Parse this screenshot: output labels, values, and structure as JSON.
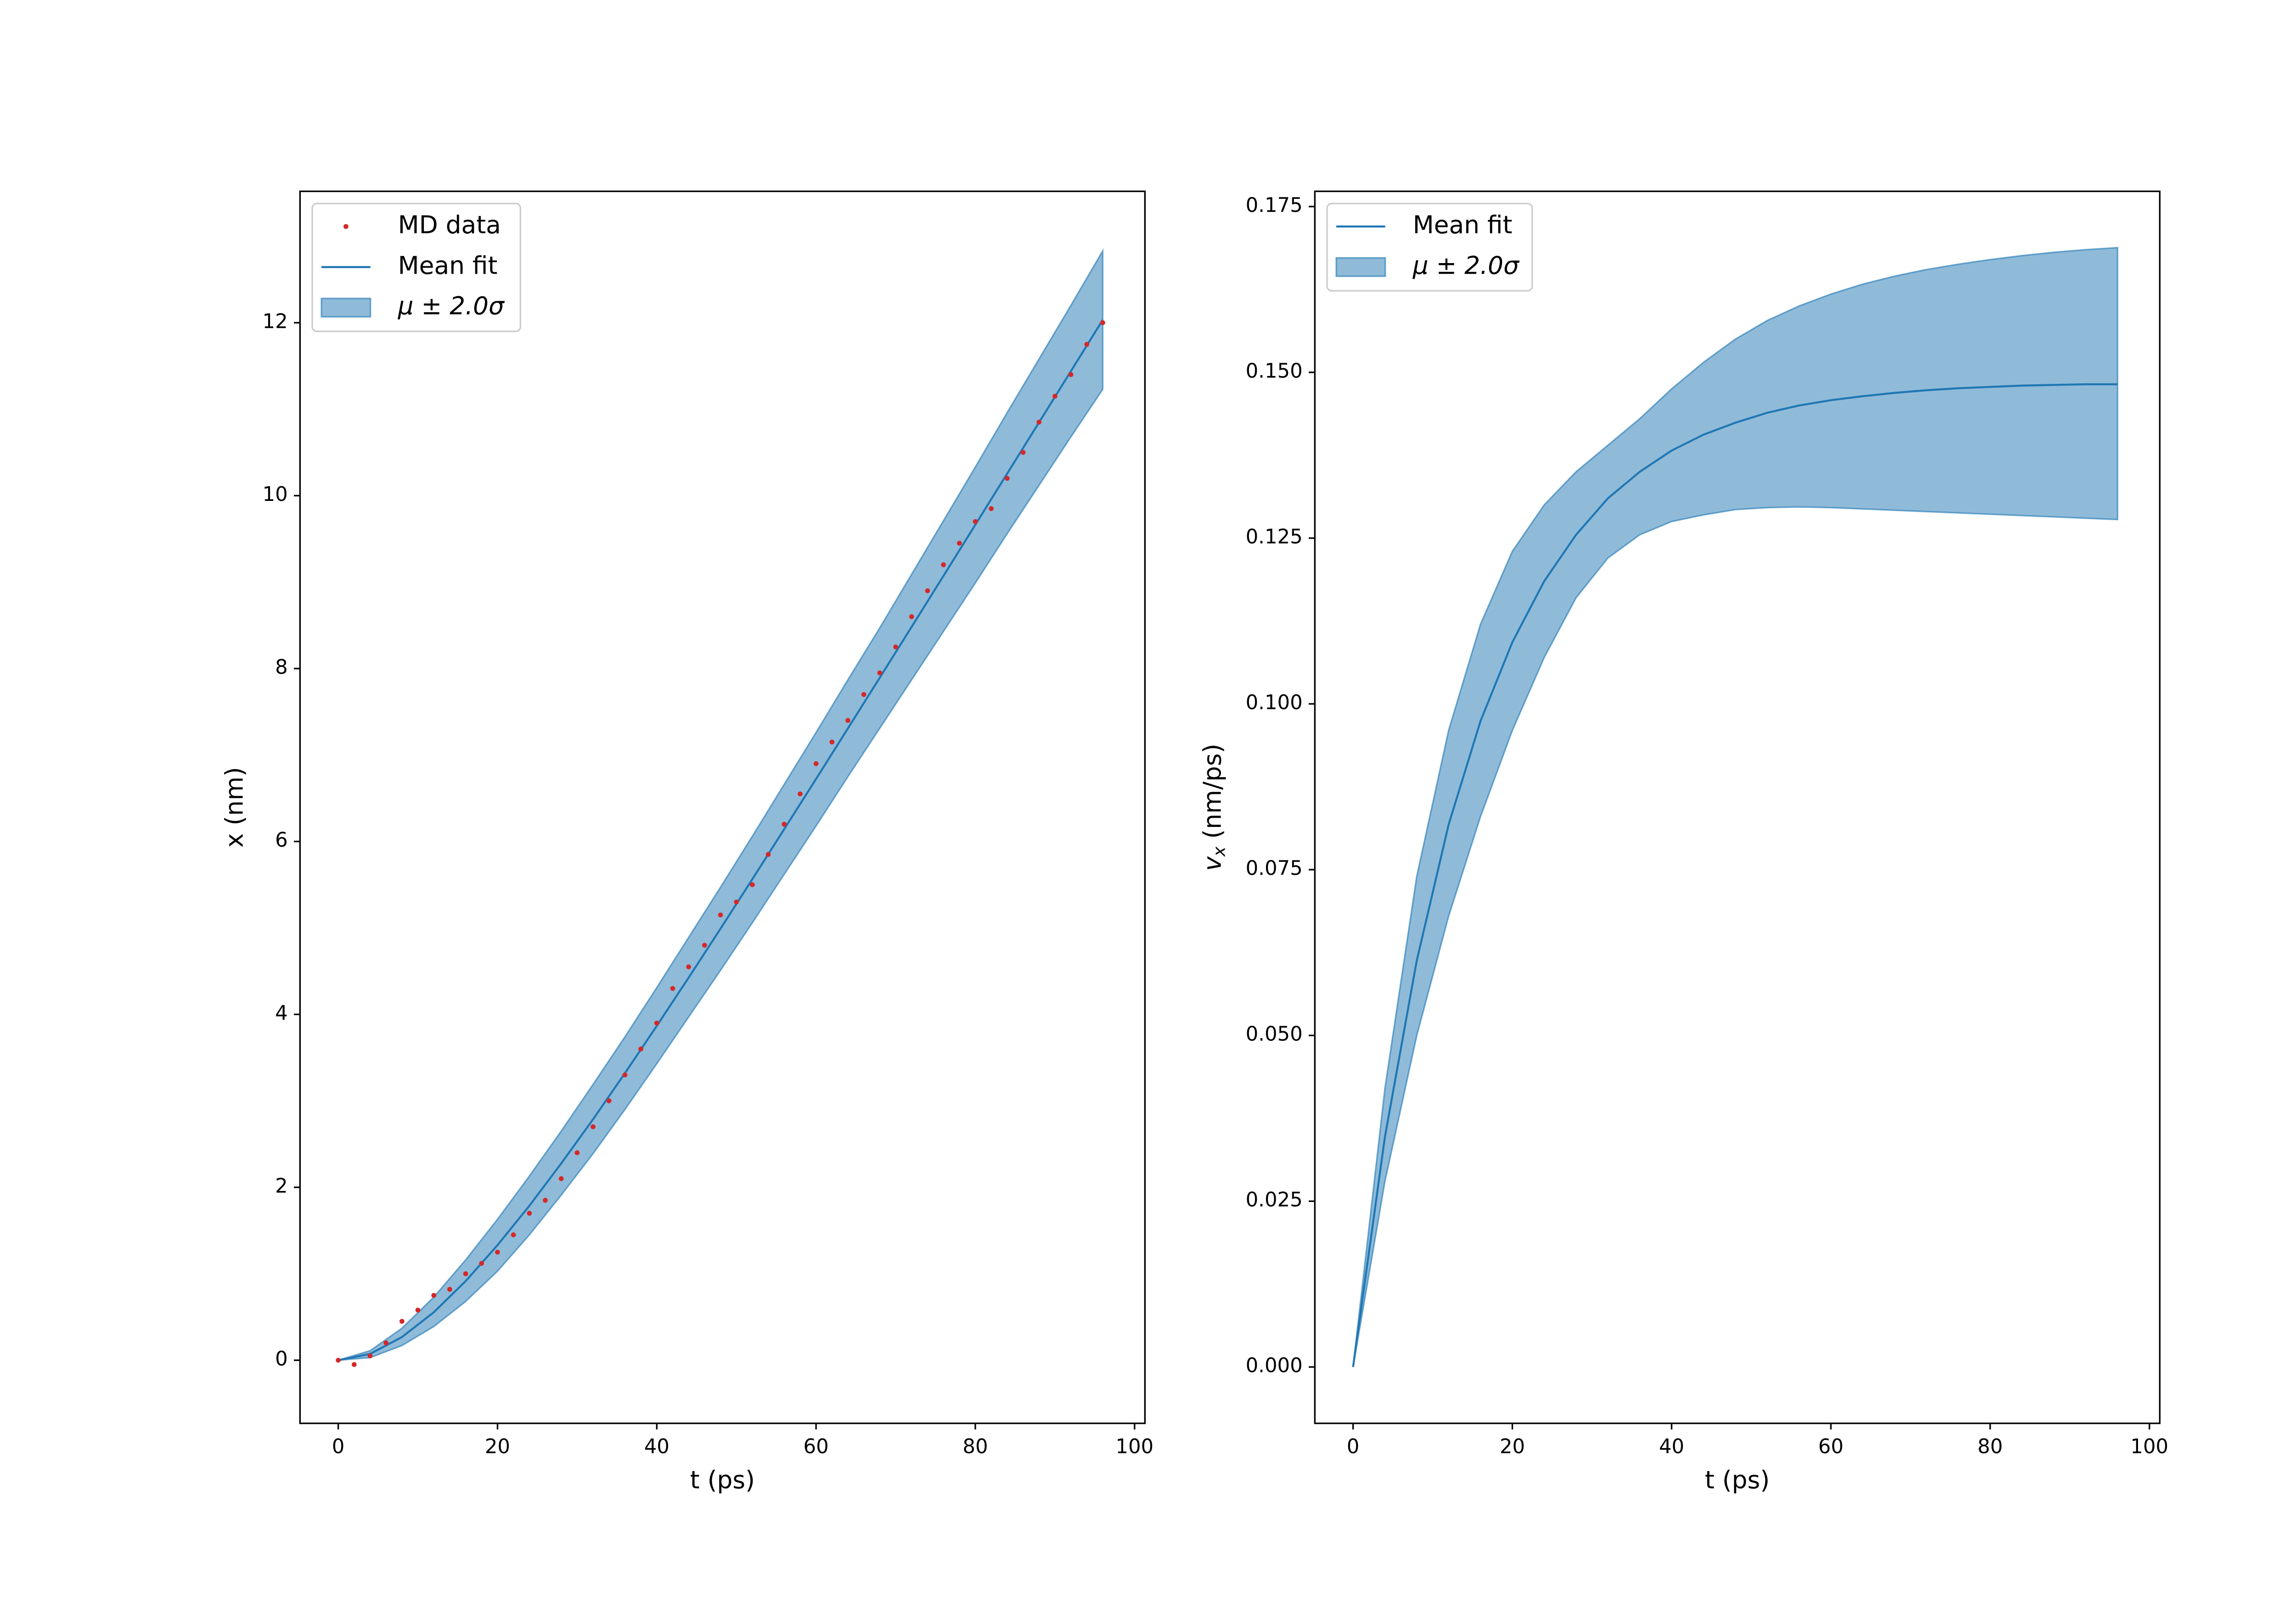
{
  "chart_data": [
    {
      "type": "line",
      "xlabel": "t (ps)",
      "ylabel": [
        "x (nm)"
      ],
      "xlim": [
        -4.8,
        101.3
      ],
      "ylim": [
        -0.73,
        13.52
      ],
      "xticks": [
        0,
        20,
        40,
        60,
        80,
        100
      ],
      "yticks": [
        0,
        2,
        4,
        6,
        8,
        10,
        12
      ],
      "legend": "upper left",
      "series": [
        {
          "name": "MD data",
          "kind": "scatter",
          "color": "#d62728",
          "x": [
            0,
            2,
            4,
            6,
            8,
            10,
            12,
            14,
            16,
            18,
            20,
            22,
            24,
            26,
            28,
            30,
            32,
            34,
            36,
            38,
            40,
            42,
            44,
            46,
            48,
            50,
            52,
            54,
            56,
            58,
            60,
            62,
            64,
            66,
            68,
            70,
            72,
            74,
            76,
            78,
            80,
            82,
            84,
            86,
            88,
            90,
            92,
            94,
            96
          ],
          "values": [
            0,
            -0.05,
            0.05,
            0.2,
            0.45,
            0.58,
            0.75,
            0.82,
            1.0,
            1.12,
            1.25,
            1.45,
            1.7,
            1.85,
            2.1,
            2.4,
            2.7,
            3.0,
            3.3,
            3.6,
            3.9,
            4.3,
            4.55,
            4.8,
            5.15,
            5.3,
            5.5,
            5.85,
            6.2,
            6.55,
            6.9,
            7.15,
            7.4,
            7.7,
            7.95,
            8.25,
            8.6,
            8.9,
            9.2,
            9.45,
            9.7,
            9.85,
            10.2,
            10.5,
            10.85,
            11.15,
            11.4,
            11.75,
            12.0
          ]
        },
        {
          "name": "Mean fit",
          "kind": "line",
          "color": "#1f77b4",
          "x": [
            0,
            4,
            8,
            12,
            16,
            20,
            24,
            28,
            32,
            36,
            40,
            44,
            48,
            52,
            56,
            60,
            64,
            68,
            72,
            76,
            80,
            84,
            88,
            92,
            96
          ],
          "values": [
            0,
            0.073,
            0.268,
            0.555,
            0.915,
            1.331,
            1.786,
            2.276,
            2.787,
            3.32,
            3.867,
            4.425,
            4.991,
            5.564,
            6.142,
            6.723,
            7.308,
            7.894,
            8.482,
            9.072,
            9.663,
            10.255,
            10.847,
            11.439,
            12.033
          ]
        },
        {
          "name": "μ ± 2.0σ",
          "kind": "band",
          "color": "#1f77b4",
          "x": [
            0,
            4,
            8,
            12,
            16,
            20,
            24,
            28,
            32,
            36,
            40,
            44,
            48,
            52,
            56,
            60,
            64,
            68,
            72,
            76,
            80,
            84,
            88,
            92,
            96
          ],
          "lower": [
            0,
            0.03,
            0.17,
            0.39,
            0.68,
            1.03,
            1.45,
            1.91,
            2.39,
            2.9,
            3.43,
            3.97,
            4.51,
            5.06,
            5.62,
            6.18,
            6.75,
            7.31,
            7.87,
            8.43,
            8.99,
            9.56,
            10.12,
            10.68,
            11.23
          ],
          "upper": [
            0,
            0.11,
            0.37,
            0.73,
            1.16,
            1.63,
            2.13,
            2.65,
            3.19,
            3.74,
            4.31,
            4.89,
            5.47,
            6.06,
            6.66,
            7.26,
            7.87,
            8.47,
            9.09,
            9.71,
            10.33,
            10.96,
            11.58,
            12.2,
            12.83
          ]
        }
      ]
    },
    {
      "type": "line",
      "xlabel": "t (ps)",
      "ylabel": [
        "v",
        "x",
        " (nm/ps)"
      ],
      "xlim": [
        -4.8,
        101.3
      ],
      "ylim": [
        -0.0085,
        0.1773
      ],
      "xticks": [
        0,
        20,
        40,
        60,
        80,
        100
      ],
      "yticks": [
        {
          "value": 0,
          "label": "0.000"
        },
        0.025,
        {
          "value": 0.05,
          "label": "0.050"
        },
        0.075,
        {
          "value": 0.1,
          "label": "0.100"
        },
        0.125,
        {
          "value": 0.15,
          "label": "0.150"
        },
        0.175
      ],
      "legend": "upper left",
      "series": [
        {
          "name": "Mean fit",
          "kind": "line",
          "color": "#1f77b4",
          "x": [
            0,
            4,
            8,
            12,
            16,
            20,
            24,
            28,
            32,
            36,
            40,
            44,
            48,
            52,
            56,
            60,
            64,
            68,
            72,
            76,
            80,
            84,
            88,
            92,
            96
          ],
          "values": [
            0,
            0.0347,
            0.0613,
            0.0818,
            0.0974,
            0.1093,
            0.1185,
            0.1255,
            0.131,
            0.135,
            0.1382,
            0.1406,
            0.1424,
            0.1439,
            0.145,
            0.1458,
            0.1464,
            0.1469,
            0.1473,
            0.1476,
            0.1478,
            0.148,
            0.1481,
            0.1482,
            0.1482
          ]
        },
        {
          "name": "μ ± 2.0σ",
          "kind": "band",
          "color": "#1f77b4",
          "x": [
            0,
            4,
            8,
            12,
            16,
            20,
            24,
            28,
            32,
            36,
            40,
            44,
            48,
            52,
            56,
            60,
            64,
            68,
            72,
            76,
            80,
            84,
            88,
            92,
            96
          ],
          "lower": [
            0,
            0.028,
            0.05,
            0.068,
            0.083,
            0.096,
            0.107,
            0.116,
            0.122,
            0.1255,
            0.1275,
            0.1285,
            0.1293,
            0.1296,
            0.1297,
            0.1296,
            0.1294,
            0.1292,
            0.129,
            0.1288,
            0.1286,
            0.1284,
            0.1282,
            0.128,
            0.1278
          ],
          "upper": [
            0,
            0.042,
            0.074,
            0.096,
            0.112,
            0.123,
            0.13,
            0.135,
            0.139,
            0.143,
            0.1475,
            0.1515,
            0.155,
            0.1578,
            0.16,
            0.1618,
            0.1633,
            0.1645,
            0.1655,
            0.1663,
            0.167,
            0.1676,
            0.1681,
            0.1685,
            0.1688
          ]
        }
      ]
    }
  ]
}
